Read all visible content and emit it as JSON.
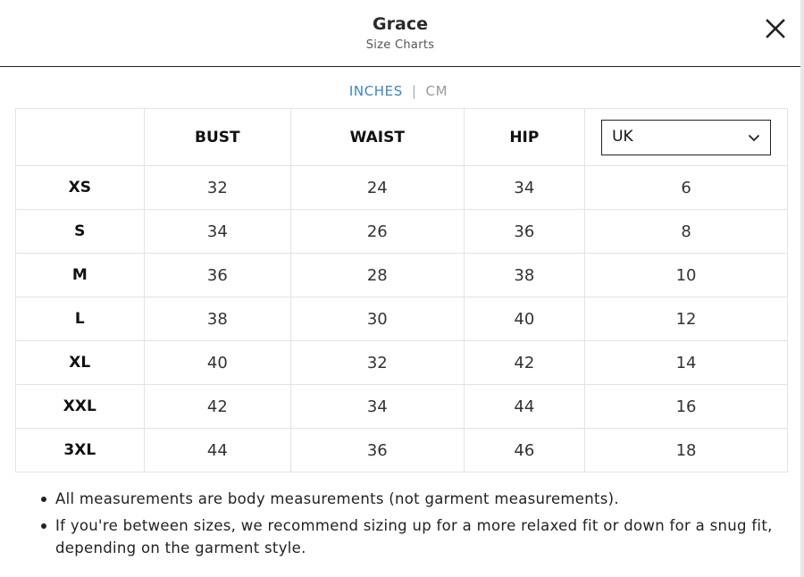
{
  "header": {
    "title": "Grace",
    "subtitle": "Size Charts",
    "close_icon": "close-icon"
  },
  "units": {
    "active": "INCHES",
    "separator": "|",
    "inactive": "CM"
  },
  "table": {
    "headers": [
      "",
      "BUST",
      "WAIST",
      "HIP"
    ],
    "region_select": {
      "value": "UK",
      "icon": "chevron-down-icon"
    },
    "rows": [
      {
        "size": "XS",
        "bust": "32",
        "waist": "24",
        "hip": "34",
        "region": "6"
      },
      {
        "size": "S",
        "bust": "34",
        "waist": "26",
        "hip": "36",
        "region": "8"
      },
      {
        "size": "M",
        "bust": "36",
        "waist": "28",
        "hip": "38",
        "region": "10"
      },
      {
        "size": "L",
        "bust": "38",
        "waist": "30",
        "hip": "40",
        "region": "12"
      },
      {
        "size": "XL",
        "bust": "40",
        "waist": "32",
        "hip": "42",
        "region": "14"
      },
      {
        "size": "XXL",
        "bust": "42",
        "waist": "34",
        "hip": "44",
        "region": "16"
      },
      {
        "size": "3XL",
        "bust": "44",
        "waist": "36",
        "hip": "46",
        "region": "18"
      }
    ]
  },
  "notes": [
    "All measurements are body measurements (not garment measurements).",
    "If you're between sizes, we recommend sizing up for a more relaxed fit or down for a snug fit, depending on the garment style."
  ]
}
